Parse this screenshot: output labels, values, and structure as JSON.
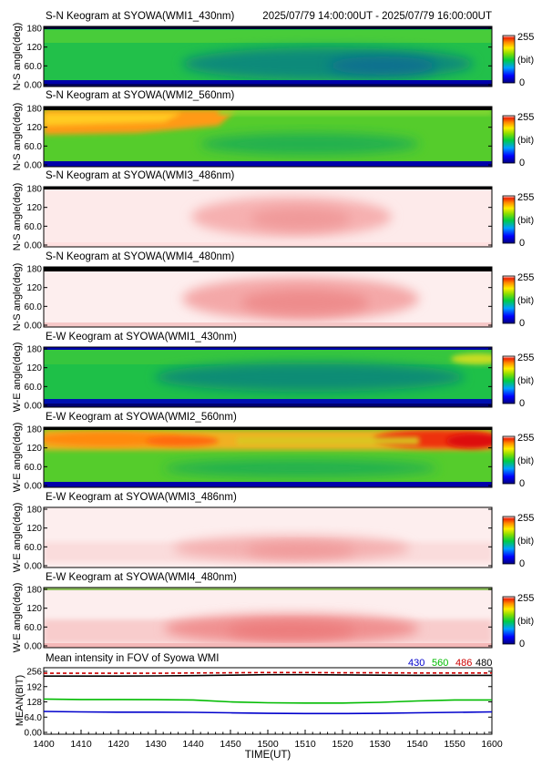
{
  "header": {
    "time_range": "2025/07/79 14:00:00UT - 2025/07/79 16:00:00UT"
  },
  "colorbar": {
    "max_label": "255",
    "unit_label": "(bit)",
    "min_label": "0"
  },
  "panels": [
    {
      "title": "S-N Keogram at SYOWA(WMI1_430nm)",
      "ylabel": "N-S angle(deg)",
      "yticks": [
        "180",
        "120",
        "60.0",
        "0.00"
      ]
    },
    {
      "title": "S-N Keogram at SYOWA(WMI2_560nm)",
      "ylabel": "N-S angle(deg)",
      "yticks": [
        "180",
        "120",
        "60.0",
        "0.00"
      ]
    },
    {
      "title": "S-N Keogram at SYOWA(WMI3_486nm)",
      "ylabel": "N-S angle(deg)",
      "yticks": [
        "180",
        "120",
        "60.0",
        "0.00"
      ]
    },
    {
      "title": "S-N Keogram at SYOWA(WMI4_480nm)",
      "ylabel": "N-S angle(deg)",
      "yticks": [
        "180",
        "120",
        "60.0",
        "0.00"
      ]
    },
    {
      "title": "E-W Keogram at SYOWA(WMI1_430nm)",
      "ylabel": "W-E angle(deg)",
      "yticks": [
        "180",
        "120",
        "60.0",
        "0.00"
      ]
    },
    {
      "title": "E-W Keogram at SYOWA(WMI2_560nm)",
      "ylabel": "W-E angle(deg)",
      "yticks": [
        "180",
        "120",
        "60.0",
        "0.00"
      ]
    },
    {
      "title": "E-W Keogram at SYOWA(WMI3_486nm)",
      "ylabel": "W-E angle(deg)",
      "yticks": [
        "180",
        "120",
        "60.0",
        "0.00"
      ]
    },
    {
      "title": "E-W Keogram at SYOWA(WMI4_480nm)",
      "ylabel": "W-E angle(deg)",
      "yticks": [
        "180",
        "120",
        "60.0",
        "0.00"
      ]
    }
  ],
  "mean_panel": {
    "title": "Mean intensity in FOV of Syowa WMI",
    "ylabel": "MEAN(BIT)",
    "yticks": [
      "256",
      "192",
      "128",
      "64.0",
      "0.00"
    ],
    "legend": [
      {
        "label": "430",
        "color": "#0000cc"
      },
      {
        "label": "560",
        "color": "#00bb00"
      },
      {
        "label": "486",
        "color": "#cc0000"
      },
      {
        "label": "480",
        "color": "#000000"
      }
    ]
  },
  "xaxis": {
    "label": "TIME(UT)",
    "ticks": [
      "1400",
      "1410",
      "1420",
      "1430",
      "1440",
      "1450",
      "1500",
      "1510",
      "1520",
      "1530",
      "1540",
      "1550",
      "1600"
    ]
  },
  "chart_data": {
    "type": "line",
    "title": "Mean intensity in FOV of Syowa WMI",
    "xlabel": "TIME(UT)",
    "ylabel": "MEAN(BIT)",
    "ylim": [
      0,
      256
    ],
    "x": [
      "1400",
      "1410",
      "1420",
      "1430",
      "1440",
      "1450",
      "1500",
      "1510",
      "1520",
      "1530",
      "1540",
      "1550",
      "1600"
    ],
    "series": [
      {
        "name": "430",
        "color": "#0000cc",
        "values": [
          88,
          86,
          85,
          85,
          84,
          82,
          80,
          79,
          79,
          80,
          82,
          84,
          86
        ]
      },
      {
        "name": "560",
        "color": "#00bb00",
        "values": [
          140,
          138,
          138,
          137,
          136,
          128,
          124,
          123,
          123,
          126,
          132,
          136,
          136
        ]
      },
      {
        "name": "486",
        "color": "#cc0000",
        "values": [
          248,
          248,
          248,
          248,
          249,
          250,
          251,
          251,
          250,
          250,
          249,
          249,
          249
        ]
      },
      {
        "name": "480",
        "color": "#000000",
        "values": [
          236,
          236,
          236,
          237,
          238,
          240,
          242,
          242,
          241,
          240,
          239,
          239,
          239
        ]
      }
    ],
    "grid": false,
    "legend": "top-right"
  }
}
